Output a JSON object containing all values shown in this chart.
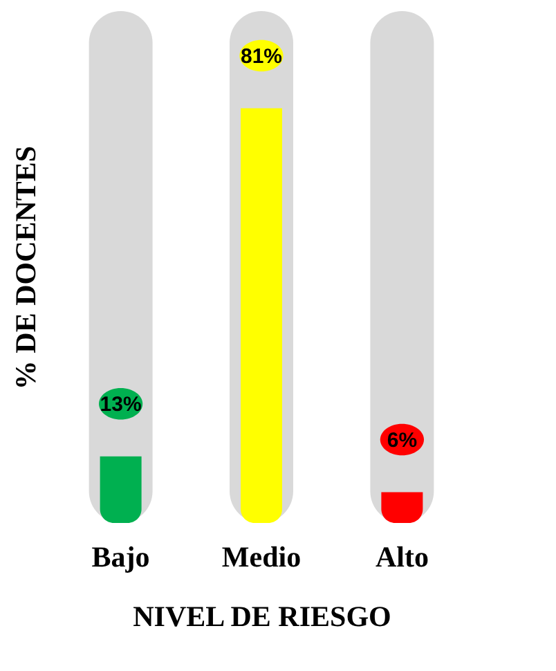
{
  "chart_data": {
    "type": "bar",
    "xlabel": "NIVEL DE RIESGO",
    "ylabel": "% DE DOCENTES",
    "categories": [
      "Bajo",
      "Medio",
      "Alto"
    ],
    "series": [
      {
        "color": "#d9d9d9",
        "values": [
          100,
          100,
          100
        ]
      },
      {
        "colors": [
          "#00b050",
          "#ffff00",
          "#ff0000"
        ],
        "values": [
          13,
          81,
          6
        ],
        "value_labels": [
          "13%",
          "81%",
          "6%"
        ]
      }
    ]
  }
}
